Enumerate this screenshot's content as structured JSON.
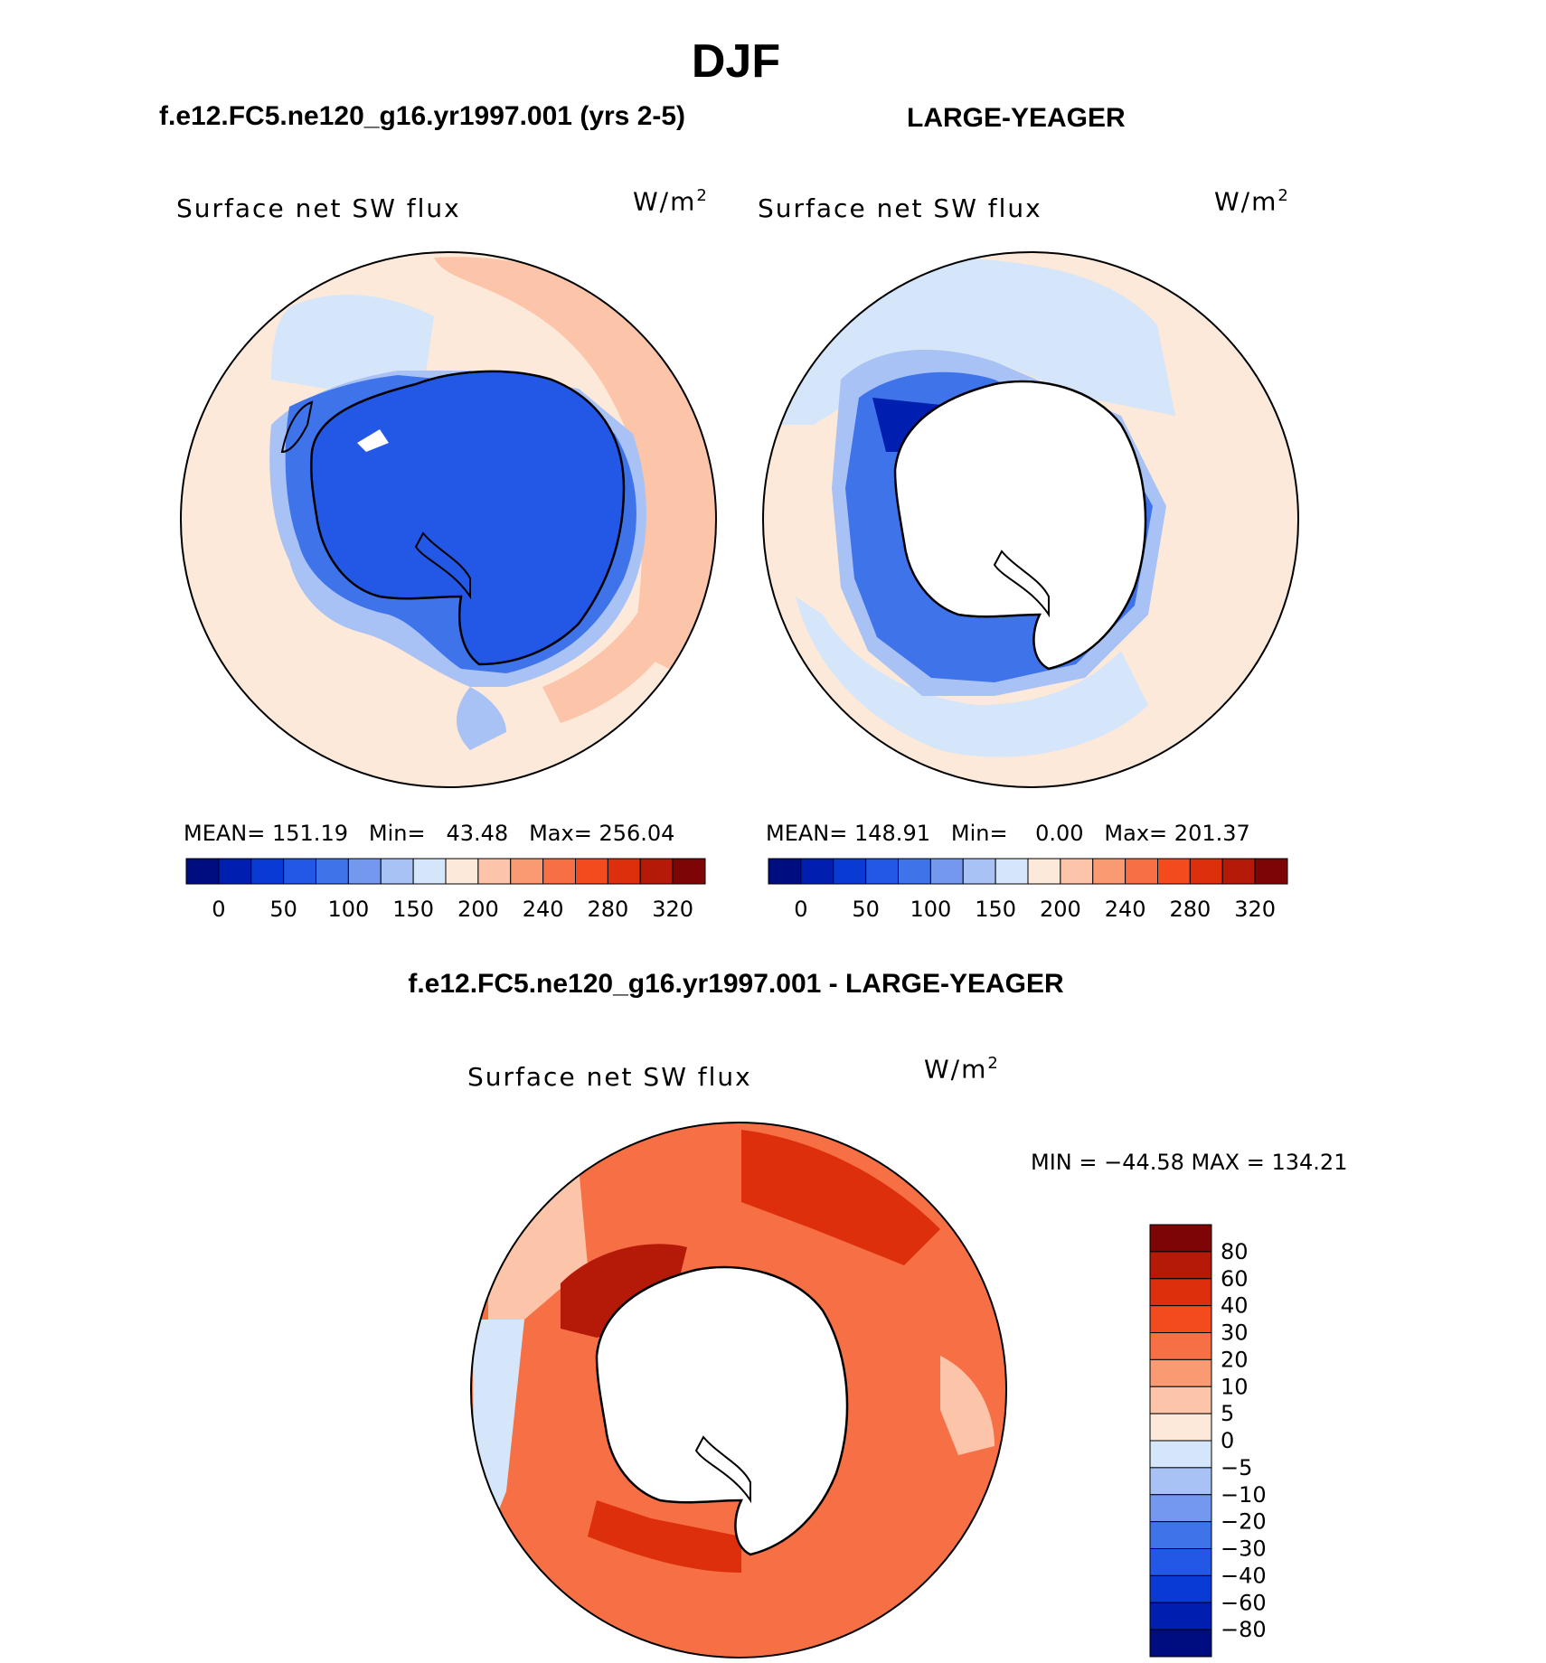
{
  "figure": {
    "season_title": "DJF",
    "left_subtitle": "f.e12.FC5.ne120_g16.yr1997.001 (yrs 2-5)",
    "right_subtitle": "LARGE-YEAGER",
    "diff_subtitle": "f.e12.FC5.ne120_g16.yr1997.001 - LARGE-YEAGER"
  },
  "panels": [
    {
      "id": "model",
      "variable_label": "Surface net SW flux",
      "units_base": "W/m",
      "units_exp": "2",
      "mean_label": "MEAN=",
      "mean": "151.19",
      "min_label": "Min=",
      "min": "43.48",
      "max_label": "Max=",
      "max": "256.04"
    },
    {
      "id": "obs",
      "variable_label": "Surface net SW flux",
      "units_base": "W/m",
      "units_exp": "2",
      "mean_label": "MEAN=",
      "mean": "148.91",
      "min_label": "Min=",
      "min": "0.00",
      "max_label": "Max=",
      "max": "201.37"
    },
    {
      "id": "diff",
      "variable_label": "Surface net SW flux",
      "units_base": "W/m",
      "units_exp": "2",
      "minmax_text": "MIN = −44.58 MAX = 134.21"
    }
  ],
  "horizontal_colorbar": {
    "colors": [
      "#000d80",
      "#001fb0",
      "#0a3ad4",
      "#2357e6",
      "#3f73ea",
      "#7598ef",
      "#a8c2f5",
      "#d5e6fa",
      "#fde9d9",
      "#fcc4a8",
      "#f99a72",
      "#f66f45",
      "#f34a1e",
      "#dd2f0c",
      "#b51a08",
      "#7e0505"
    ],
    "tick_labels": [
      "0",
      "50",
      "100",
      "150",
      "200",
      "240",
      "280",
      "320"
    ]
  },
  "vertical_colorbar": {
    "colors": [
      "#7e0505",
      "#b51a08",
      "#dd2f0c",
      "#f34a1e",
      "#f66f45",
      "#f99a72",
      "#fcc4a8",
      "#fde9d9",
      "#d5e6fa",
      "#a8c2f5",
      "#7598ef",
      "#3f73ea",
      "#2357e6",
      "#0a3ad4",
      "#001fb0",
      "#000d80"
    ],
    "tick_labels": [
      "80",
      "60",
      "40",
      "30",
      "20",
      "10",
      "5",
      "0",
      "−5",
      "−10",
      "−20",
      "−30",
      "−40",
      "−60",
      "−80"
    ]
  },
  "map_colors": {
    "ocean_warm": "#fde9d9",
    "ocean_warmer": "#fcc4a8",
    "ice_blue": "#2357e6",
    "ice_deep": "#0a3ad4",
    "light_blue": "#d5e6fa",
    "mid_blue": "#a8c2f5",
    "diff_base": "#f66f45",
    "diff_strong": "#dd2f0c",
    "diff_max": "#b51a08"
  }
}
